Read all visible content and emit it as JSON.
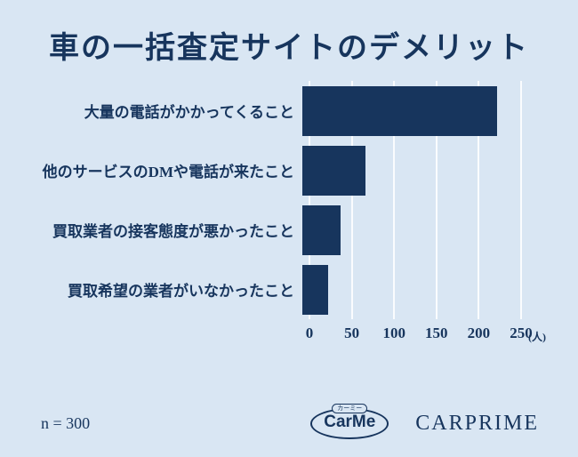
{
  "title": "車の一括査定サイトのデメリット",
  "chart_data": {
    "type": "bar",
    "orientation": "horizontal",
    "title": "車の一括査定サイトのデメリット",
    "categories": [
      "大量の電話がかかってくること",
      "他のサービスのDMや電話が来たこと",
      "買取業者の接客態度が悪かったこと",
      "買取希望の業者がいなかったこと"
    ],
    "values": [
      230,
      75,
      45,
      30
    ],
    "xlim": [
      0,
      250
    ],
    "x_ticks": [
      0,
      50,
      100,
      150,
      200,
      250
    ],
    "x_tick_labels": [
      "0",
      "50",
      "100",
      "150",
      "200",
      "250"
    ],
    "x_unit": "(人)",
    "grid": true,
    "legend": "none",
    "bar_color": "#17355d",
    "background_color": "#d9e6f3"
  },
  "footer": {
    "sample_size": "n = 300",
    "carme_small_label": "カーミー",
    "carme_text": "CarMe",
    "carprime_text": "CARPRIME"
  }
}
